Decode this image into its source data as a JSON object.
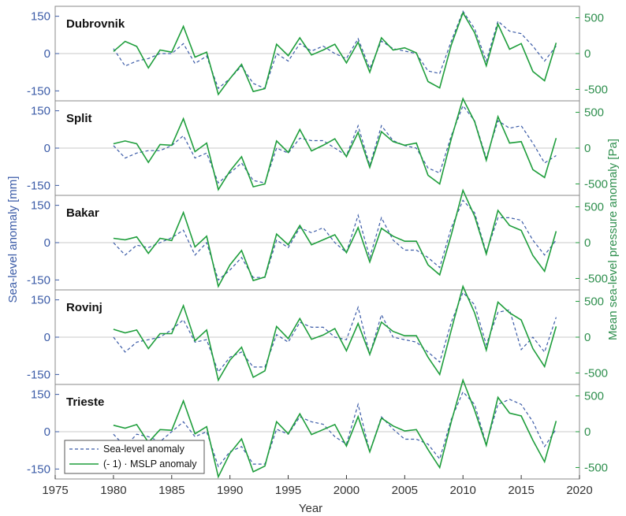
{
  "colors": {
    "sea_level": "#3b5ba7",
    "mslp": "#1f9e3c",
    "zero_line": "#c8c8c8",
    "frame": "#888888"
  },
  "chart_data": {
    "type": "line",
    "xlabel": "Year",
    "ylabel_left": "Sea-level anomaly [mm]",
    "ylabel_right": "Mean sea-level pressure anomaly [Pa]",
    "xlim": [
      1975,
      2020
    ],
    "xticks": [
      1975,
      1980,
      1985,
      1990,
      1995,
      2000,
      2005,
      2010,
      2015,
      2020
    ],
    "ylim_left": [
      -190,
      190
    ],
    "ylim_right": [
      -660,
      660
    ],
    "yticks_left": [
      -150,
      0,
      150
    ],
    "yticks_right": [
      -500,
      0,
      500
    ],
    "legend": {
      "position": "bottom-left of last panel",
      "entries": [
        "Sea-level anomaly",
        "(- 1) · MSLP anomaly"
      ]
    },
    "years": [
      1980,
      1981,
      1982,
      1983,
      1984,
      1985,
      1986,
      1987,
      1988,
      1989,
      1990,
      1991,
      1992,
      1993,
      1994,
      1995,
      1996,
      1997,
      1998,
      1999,
      2000,
      2001,
      2002,
      2003,
      2004,
      2005,
      2006,
      2007,
      2008,
      2009,
      2010,
      2011,
      2012,
      2013,
      2014,
      2015,
      2016,
      2017,
      2018
    ],
    "panels": [
      {
        "station": "Dubrovnik",
        "sea_level": [
          20,
          -50,
          -30,
          -20,
          0,
          0,
          40,
          -40,
          -10,
          -140,
          -100,
          -50,
          -120,
          -140,
          0,
          -30,
          40,
          10,
          30,
          0,
          -20,
          60,
          -60,
          50,
          20,
          10,
          0,
          -70,
          -80,
          50,
          170,
          100,
          -30,
          130,
          90,
          80,
          30,
          -30,
          30
        ],
        "mslp": [
          30,
          170,
          100,
          -200,
          50,
          20,
          380,
          -50,
          20,
          -570,
          -350,
          -150,
          -530,
          -490,
          130,
          -30,
          220,
          -20,
          50,
          130,
          -130,
          160,
          -260,
          220,
          50,
          80,
          10,
          -390,
          -480,
          120,
          570,
          290,
          -170,
          410,
          60,
          140,
          -250,
          -380,
          150
        ]
      },
      {
        "station": "Split",
        "sea_level": [
          10,
          -40,
          -20,
          -10,
          -10,
          10,
          50,
          -40,
          -20,
          -140,
          -100,
          -60,
          -130,
          -140,
          0,
          -20,
          40,
          30,
          30,
          0,
          -30,
          90,
          -70,
          90,
          30,
          10,
          0,
          -80,
          -100,
          50,
          170,
          110,
          -40,
          110,
          80,
          90,
          20,
          -60,
          -30
        ],
        "mslp": [
          60,
          100,
          60,
          -200,
          50,
          40,
          410,
          -50,
          70,
          -580,
          -320,
          -120,
          -540,
          -500,
          100,
          -60,
          260,
          -40,
          40,
          130,
          -120,
          220,
          -270,
          230,
          90,
          40,
          70,
          -380,
          -500,
          130,
          690,
          370,
          -170,
          440,
          70,
          90,
          -300,
          -410,
          140
        ]
      },
      {
        "station": "Bakar",
        "sea_level": [
          0,
          -50,
          -10,
          -20,
          0,
          20,
          50,
          -50,
          0,
          -150,
          -110,
          -60,
          -140,
          -140,
          10,
          -20,
          60,
          40,
          60,
          0,
          -40,
          110,
          -60,
          100,
          10,
          -30,
          -30,
          -60,
          -100,
          60,
          170,
          120,
          -40,
          100,
          100,
          90,
          10,
          -50,
          10
        ],
        "mslp": [
          60,
          40,
          80,
          -150,
          60,
          30,
          420,
          -60,
          90,
          -610,
          -310,
          -110,
          -530,
          -480,
          120,
          -30,
          240,
          -30,
          40,
          110,
          -140,
          210,
          -270,
          200,
          90,
          20,
          20,
          -310,
          -450,
          110,
          730,
          370,
          -160,
          450,
          240,
          170,
          -180,
          -400,
          160
        ]
      },
      {
        "station": "Rovinj",
        "sea_level": [
          0,
          -60,
          -20,
          -10,
          0,
          30,
          70,
          -20,
          -10,
          -140,
          -80,
          -60,
          -120,
          -120,
          10,
          -20,
          60,
          40,
          40,
          0,
          -10,
          120,
          -70,
          90,
          0,
          -10,
          -20,
          -60,
          -100,
          60,
          180,
          130,
          -30,
          100,
          110,
          -50,
          0,
          -60,
          80
        ],
        "mslp": [
          110,
          60,
          100,
          -160,
          50,
          50,
          440,
          -50,
          100,
          -600,
          -320,
          -140,
          -560,
          -470,
          150,
          -20,
          260,
          -30,
          30,
          120,
          -190,
          190,
          -240,
          210,
          80,
          20,
          20,
          -280,
          -520,
          100,
          710,
          340,
          -180,
          490,
          340,
          240,
          -160,
          -410,
          150
        ]
      },
      {
        "station": "Trieste",
        "sea_level": [
          -10,
          -60,
          -10,
          -20,
          -40,
          0,
          40,
          -20,
          0,
          -140,
          -80,
          -60,
          -130,
          -130,
          10,
          -10,
          60,
          40,
          30,
          -20,
          -50,
          110,
          -80,
          60,
          10,
          -30,
          -30,
          -50,
          -110,
          50,
          160,
          110,
          -50,
          110,
          130,
          110,
          40,
          -60,
          10
        ],
        "mslp": [
          90,
          50,
          100,
          -150,
          30,
          20,
          430,
          -30,
          70,
          -630,
          -300,
          -100,
          -560,
          -480,
          140,
          -30,
          250,
          -40,
          30,
          100,
          -200,
          210,
          -280,
          190,
          80,
          10,
          30,
          -250,
          -500,
          140,
          720,
          300,
          -190,
          480,
          260,
          220,
          -120,
          -420,
          150
        ]
      }
    ]
  }
}
